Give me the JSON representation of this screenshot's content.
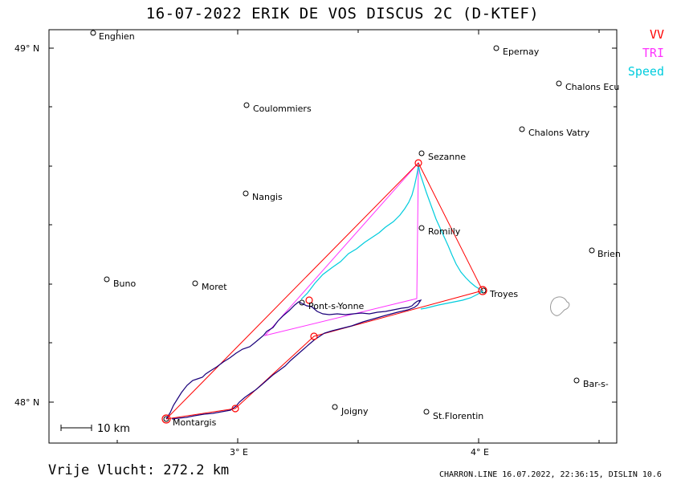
{
  "title": "16-07-2022   ERIK DE VOS   DISCUS 2C (D-KTEF)",
  "legend": [
    {
      "label": "VV",
      "color": "#ff0000"
    },
    {
      "label": "TRI",
      "color": "#ff33ff"
    },
    {
      "label": "Speed",
      "color": "#00ccdd"
    }
  ],
  "axes": {
    "lat_labels": [
      "49° N",
      "48° N"
    ],
    "lon_labels": [
      "3° E",
      "4° E"
    ]
  },
  "scale_bar": {
    "label": "10 km"
  },
  "places": [
    {
      "name": "Enghien"
    },
    {
      "name": "Epernay"
    },
    {
      "name": "Chalons Ecu"
    },
    {
      "name": "Coulommiers"
    },
    {
      "name": "Chalons Vatry"
    },
    {
      "name": "Sezanne"
    },
    {
      "name": "Nangis"
    },
    {
      "name": "Romilly"
    },
    {
      "name": "Brien"
    },
    {
      "name": "Buno"
    },
    {
      "name": "Moret"
    },
    {
      "name": "Troyes"
    },
    {
      "name": "Pont-s-Yonne"
    },
    {
      "name": "Bar-s-"
    },
    {
      "name": "Joigny"
    },
    {
      "name": "St.Florentin"
    },
    {
      "name": "Montargis"
    }
  ],
  "footer": {
    "distance": "Vrije Vlucht:  272.2 km",
    "credit": "CHARRON.LINE 16.07.2022, 22:36:15, DISLIN 10.6"
  }
}
